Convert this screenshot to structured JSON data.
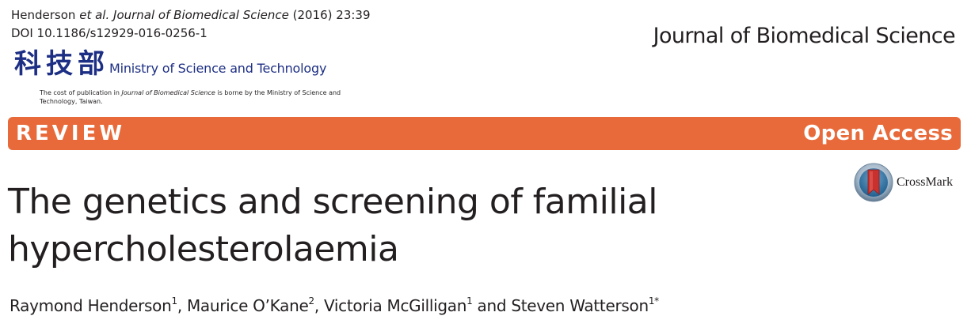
{
  "citation": {
    "authors": "Henderson",
    "et_al": "et al.",
    "journal": "Journal of Biomedical Science",
    "year_volume": "(2016) 23:39",
    "doi": "DOI 10.1186/s12929-016-0256-1"
  },
  "journal_name": "Journal of Biomedical Science",
  "ministry": {
    "seal_chars": [
      "科",
      "技",
      "部"
    ],
    "name": "Ministry of Science and Technology",
    "cost_note_prefix": "The cost of publication in ",
    "cost_note_journal": "Journal of Biomedical Science",
    "cost_note_suffix": " is borne by the Ministry of Science and Technology, Taiwan."
  },
  "banner": {
    "type_label": "REVIEW",
    "access_label": "Open Access",
    "color": "#e86a3a"
  },
  "crossmark": {
    "label": "CrossMark",
    "icon": "crossmark-icon"
  },
  "article": {
    "title_line1": "The genetics and screening of familial",
    "title_line2": "hypercholesterolaemia"
  },
  "authors": [
    {
      "name": "Raymond Henderson",
      "affil": "1",
      "sep": ", "
    },
    {
      "name": "Maurice O’Kane",
      "affil": "2",
      "sep": ", "
    },
    {
      "name": "Victoria McGilligan",
      "affil": "1",
      "sep": " and "
    },
    {
      "name": "Steven Watterson",
      "affil": "1*",
      "sep": ""
    }
  ]
}
